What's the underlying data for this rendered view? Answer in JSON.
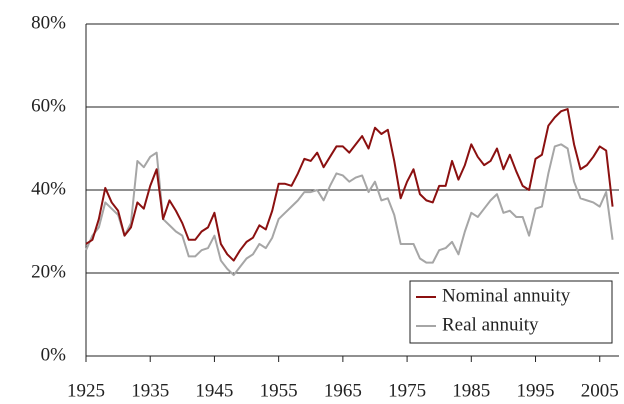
{
  "chart_data": {
    "type": "line",
    "x": [
      1925,
      1926,
      1927,
      1928,
      1929,
      1930,
      1931,
      1932,
      1933,
      1934,
      1935,
      1936,
      1937,
      1938,
      1939,
      1940,
      1941,
      1942,
      1943,
      1944,
      1945,
      1946,
      1947,
      1948,
      1949,
      1950,
      1951,
      1952,
      1953,
      1954,
      1955,
      1956,
      1957,
      1958,
      1959,
      1960,
      1961,
      1962,
      1963,
      1964,
      1965,
      1966,
      1967,
      1968,
      1969,
      1970,
      1971,
      1972,
      1973,
      1974,
      1975,
      1976,
      1977,
      1978,
      1979,
      1980,
      1981,
      1982,
      1983,
      1984,
      1985,
      1986,
      1987,
      1988,
      1989,
      1990,
      1991,
      1992,
      1993,
      1994,
      1995,
      1996,
      1997,
      1998,
      1999,
      2000,
      2001,
      2002,
      2003,
      2004,
      2005,
      2006,
      2007
    ],
    "series": [
      {
        "name": "Nominal annuity",
        "color": "#8b1010",
        "values": [
          27,
          28,
          33,
          40.5,
          37,
          35,
          29,
          31,
          37,
          35.5,
          41,
          45,
          33,
          37.5,
          35,
          32,
          28,
          28,
          30,
          31,
          34.5,
          27,
          24.5,
          23,
          25.5,
          27.5,
          28.5,
          31.5,
          30.5,
          35,
          41.5,
          41.5,
          41,
          44,
          47.5,
          47,
          49,
          45.5,
          48,
          50.5,
          50.5,
          49,
          51,
          53,
          50,
          55,
          53.5,
          54.5,
          47,
          38,
          42,
          45,
          39,
          37.5,
          37,
          41,
          41,
          47,
          42.5,
          46,
          51,
          48,
          46,
          47,
          50,
          45,
          48.5,
          44.5,
          41,
          40,
          47.5,
          48.5,
          55.5,
          57.5,
          59,
          59.5,
          51,
          45,
          46,
          48,
          50.5,
          49.5,
          36
        ]
      },
      {
        "name": "Real annuity",
        "color": "#a6a6a6",
        "values": [
          25.5,
          29,
          31,
          37,
          35.5,
          34,
          29,
          32,
          47,
          45.5,
          48,
          49,
          33,
          31.5,
          30,
          29,
          24,
          24,
          25.5,
          26,
          29,
          23,
          21,
          19.5,
          21.5,
          23.5,
          24.5,
          27,
          26,
          28.5,
          33,
          34.5,
          36,
          37.5,
          39.5,
          39.5,
          40,
          37.5,
          41,
          44,
          43.5,
          42,
          43,
          43.5,
          39.5,
          42,
          37.5,
          38,
          34,
          27,
          27,
          27,
          23.5,
          22.5,
          22.5,
          25.5,
          26,
          27.5,
          24.5,
          30,
          34.5,
          33.5,
          35.5,
          37.5,
          39,
          34.5,
          35,
          33.5,
          33.5,
          29,
          35.5,
          36,
          44,
          50.5,
          51,
          50,
          42,
          38,
          37.5,
          37,
          36,
          39.5,
          28
        ]
      }
    ],
    "xlim": [
      1925,
      2008
    ],
    "xticks": [
      1925,
      1935,
      1945,
      1955,
      1965,
      1975,
      1985,
      1995,
      2005
    ],
    "ylim": [
      0,
      80
    ],
    "yticks": [
      {
        "value": 0,
        "label": "0%"
      },
      {
        "value": 20,
        "label": "20%"
      },
      {
        "value": 40,
        "label": "40%"
      },
      {
        "value": 60,
        "label": "60%"
      },
      {
        "value": 80,
        "label": "80%"
      }
    ],
    "grid": true,
    "legend": "lower right"
  }
}
